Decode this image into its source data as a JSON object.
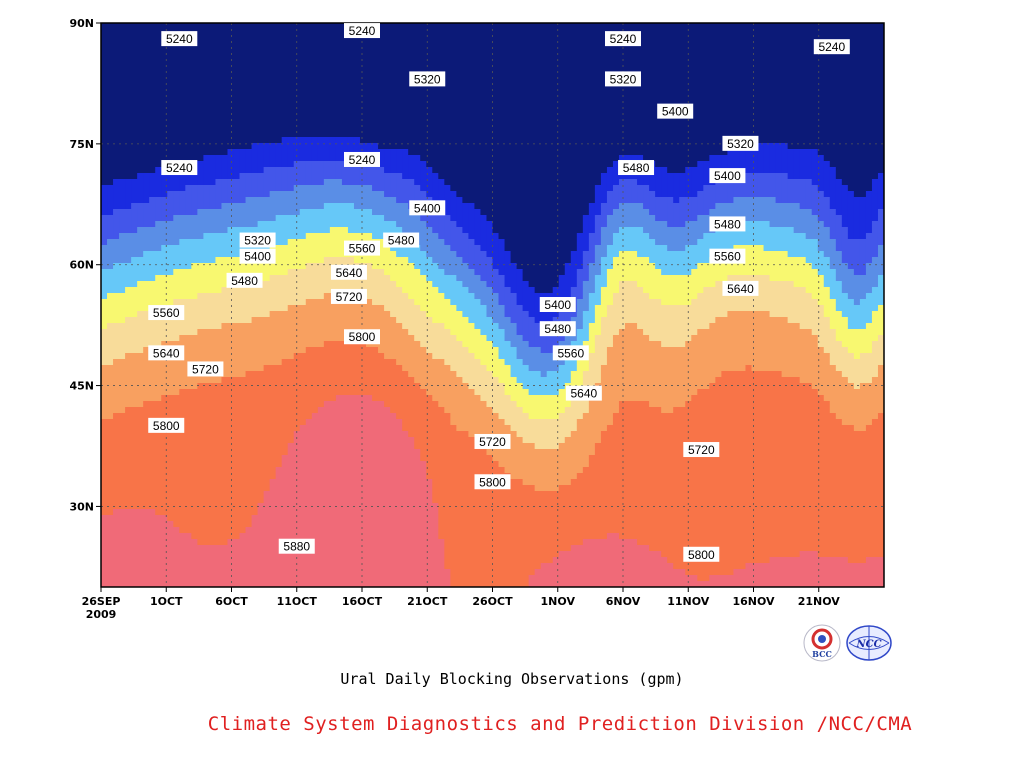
{
  "chart_data": {
    "type": "heatmap",
    "subtype": "filled-contour",
    "title": "Ural Daily Blocking Observations (gpm)",
    "credit": "Climate System Diagnostics and Prediction Division /NCC/CMA",
    "x_axis": {
      "ticks": [
        "26SEP",
        "1OCT",
        "6OCT",
        "11OCT",
        "16OCT",
        "21OCT",
        "26OCT",
        "1NOV",
        "6NOV",
        "11NOV",
        "16NOV",
        "21NOV"
      ],
      "year_label": "2009",
      "range": [
        "2009-09-26",
        "2009-11-25"
      ]
    },
    "y_axis": {
      "ticks": [
        "30N",
        "45N",
        "60N",
        "75N",
        "90N"
      ],
      "range_deg": [
        20,
        90
      ]
    },
    "grid": true,
    "levels": [
      5240,
      5320,
      5400,
      5480,
      5560,
      5640,
      5720,
      5800,
      5880
    ],
    "colors": [
      "#0c1a78",
      "#1a2be0",
      "#4356ea",
      "#5a8ee6",
      "#66c8f8",
      "#f8f870",
      "#f8dc9a",
      "#f8a060",
      "#f87448",
      "#f06a78",
      "#ee3a48"
    ],
    "contour_labels": [
      {
        "value": "5240",
        "date": "2009-10-02",
        "lat": 88
      },
      {
        "value": "5240",
        "date": "2009-10-16",
        "lat": 89
      },
      {
        "value": "5240",
        "date": "2009-11-05",
        "lat": 88
      },
      {
        "value": "5240",
        "date": "2009-11-21",
        "lat": 87
      },
      {
        "value": "5240",
        "date": "2009-10-02",
        "lat": 72
      },
      {
        "value": "5240",
        "date": "2009-10-16",
        "lat": 73
      },
      {
        "value": "5320",
        "date": "2009-10-21",
        "lat": 83
      },
      {
        "value": "5320",
        "date": "2009-11-05",
        "lat": 83
      },
      {
        "value": "5320",
        "date": "2009-10-08",
        "lat": 63
      },
      {
        "value": "5320",
        "date": "2009-11-14",
        "lat": 75
      },
      {
        "value": "5400",
        "date": "2009-11-09",
        "lat": 79
      },
      {
        "value": "5400",
        "date": "2009-10-21",
        "lat": 67
      },
      {
        "value": "5400",
        "date": "2009-10-08",
        "lat": 61
      },
      {
        "value": "5400",
        "date": "2009-10-31",
        "lat": 55
      },
      {
        "value": "5400",
        "date": "2009-11-13",
        "lat": 71
      },
      {
        "value": "5480",
        "date": "2009-11-06",
        "lat": 72
      },
      {
        "value": "5480",
        "date": "2009-10-19",
        "lat": 63
      },
      {
        "value": "5480",
        "date": "2009-10-07",
        "lat": 58
      },
      {
        "value": "5480",
        "date": "2009-10-31",
        "lat": 52
      },
      {
        "value": "5480",
        "date": "2009-11-13",
        "lat": 65
      },
      {
        "value": "5560",
        "date": "2009-10-16",
        "lat": 62
      },
      {
        "value": "5560",
        "date": "2009-10-01",
        "lat": 54
      },
      {
        "value": "5560",
        "date": "2009-11-01",
        "lat": 49
      },
      {
        "value": "5560",
        "date": "2009-11-13",
        "lat": 61
      },
      {
        "value": "5640",
        "date": "2009-10-15",
        "lat": 59
      },
      {
        "value": "5640",
        "date": "2009-10-01",
        "lat": 49
      },
      {
        "value": "5640",
        "date": "2009-11-02",
        "lat": 44
      },
      {
        "value": "5640",
        "date": "2009-11-14",
        "lat": 57
      },
      {
        "value": "5720",
        "date": "2009-10-15",
        "lat": 56
      },
      {
        "value": "5720",
        "date": "2009-10-04",
        "lat": 47
      },
      {
        "value": "5720",
        "date": "2009-10-26",
        "lat": 38
      },
      {
        "value": "5720",
        "date": "2009-11-11",
        "lat": 37
      },
      {
        "value": "5800",
        "date": "2009-10-16",
        "lat": 51
      },
      {
        "value": "5800",
        "date": "2009-10-01",
        "lat": 40
      },
      {
        "value": "5800",
        "date": "2009-10-26",
        "lat": 33
      },
      {
        "value": "5800",
        "date": "2009-11-11",
        "lat": 24
      },
      {
        "value": "5880",
        "date": "2009-10-11",
        "lat": 25
      }
    ]
  },
  "logos": {
    "bcc": {
      "name": "bcc-logo",
      "text": "BCC"
    },
    "ncc": {
      "name": "ncc-logo",
      "text": "NCC"
    }
  }
}
